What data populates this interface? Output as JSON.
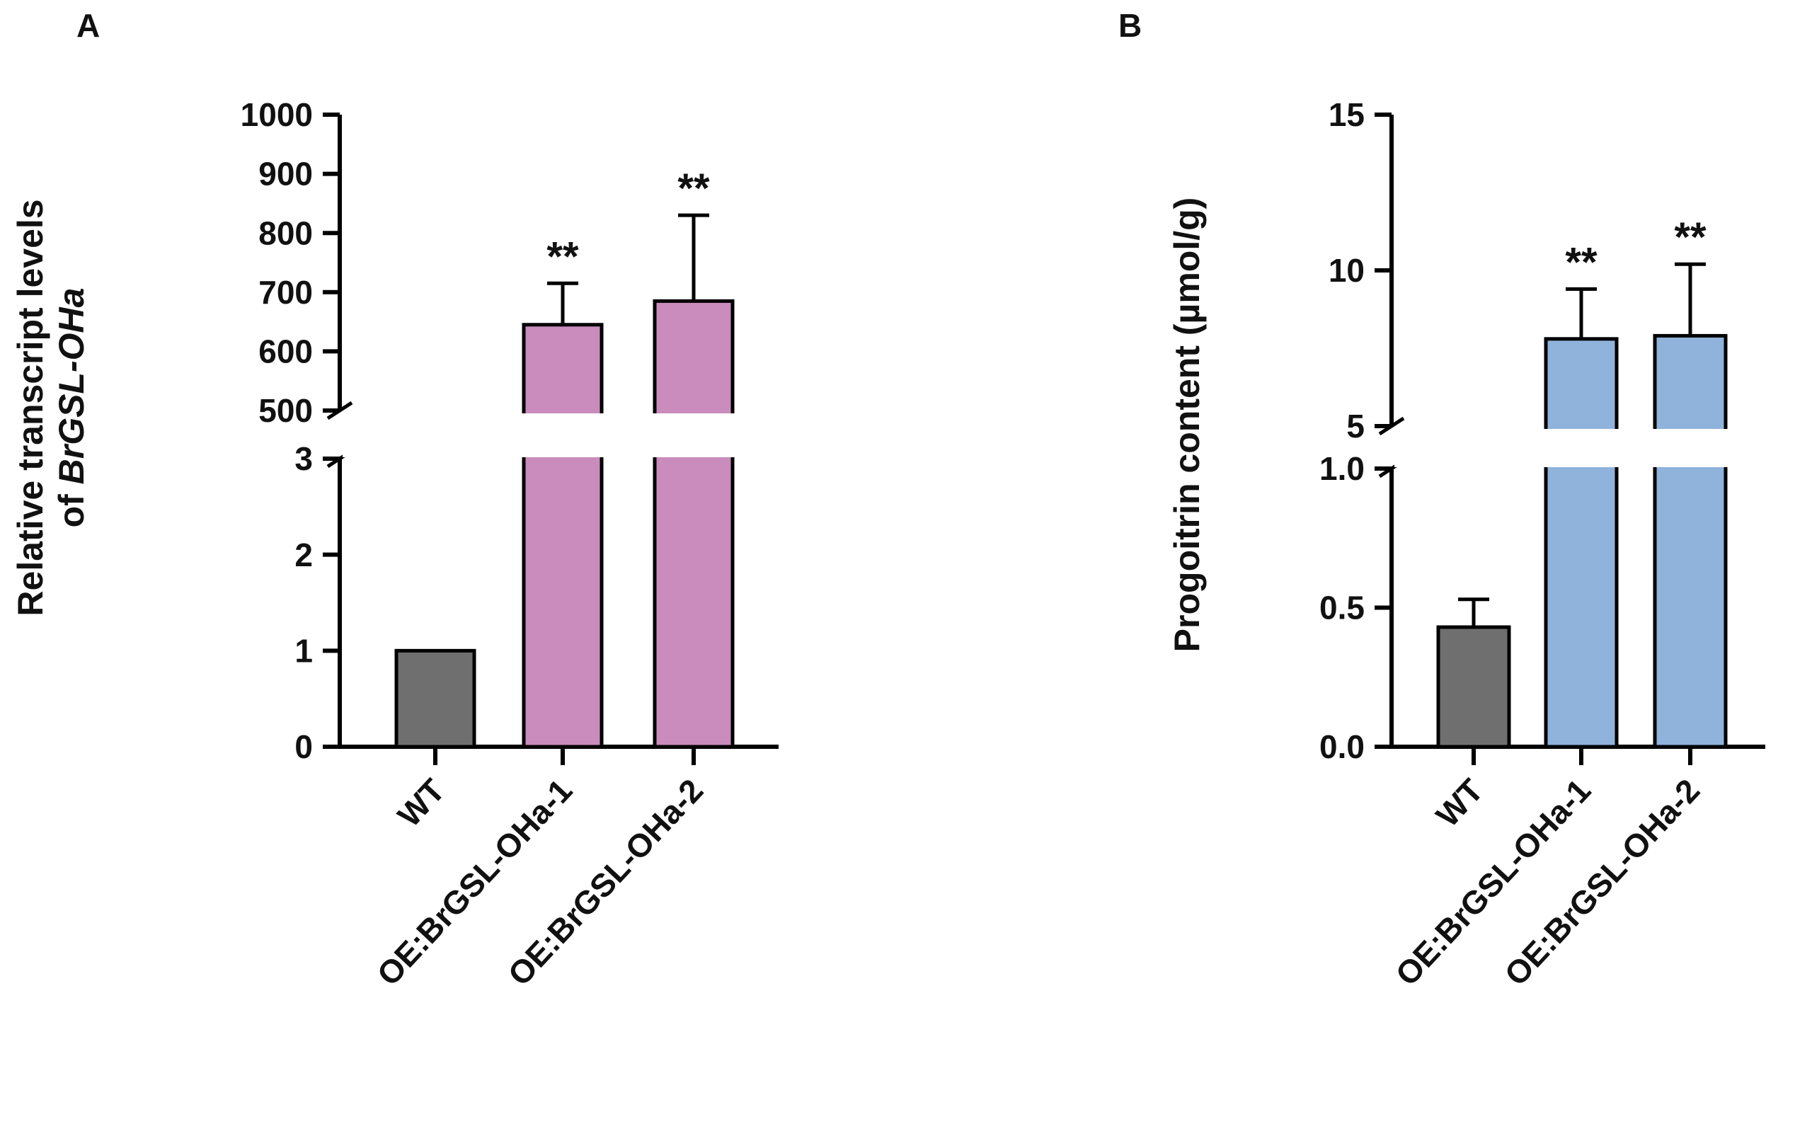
{
  "figure": {
    "background": "#ffffff",
    "text_color": "#111111"
  },
  "chart_data": [
    {
      "type": "bar",
      "panel_label": "A",
      "ylabel": "Relative transcript levels of BrGSL-OHa",
      "ylabel_lines": [
        [
          {
            "t": "Relative transcript levels",
            "italic": false
          }
        ],
        [
          {
            "t": "of ",
            "italic": false
          },
          {
            "t": "BrGSL-OHa",
            "italic": true
          }
        ]
      ],
      "categories": [
        "WT",
        "OE:BrGSL-OHa-1",
        "OE:BrGSL-OHa-2"
      ],
      "values": [
        1,
        645,
        685
      ],
      "errors_plus": [
        0,
        70,
        145
      ],
      "significance": [
        "",
        "**",
        "**"
      ],
      "bar_colors": [
        "#6f6f6f",
        "#c98cbd",
        "#c98cbd"
      ],
      "bar_edge_color": "#000000",
      "axis_break": true,
      "lower_axis": {
        "min": 0,
        "max": 3,
        "ticks": [
          {
            "v": 0,
            "label": "0"
          },
          {
            "v": 1,
            "label": "1"
          },
          {
            "v": 2,
            "label": "2"
          },
          {
            "v": 3,
            "label": "3"
          }
        ]
      },
      "upper_axis": {
        "min": 500,
        "max": 1000,
        "ticks": [
          {
            "v": 500,
            "label": "500"
          },
          {
            "v": 600,
            "label": "600"
          },
          {
            "v": 700,
            "label": "700"
          },
          {
            "v": 800,
            "label": "800"
          },
          {
            "v": 900,
            "label": "900"
          },
          {
            "v": 1000,
            "label": "1000"
          }
        ]
      },
      "grid": false,
      "legend": false
    },
    {
      "type": "bar",
      "panel_label": "B",
      "ylabel": "Progoitrin content (µmol/g)",
      "ylabel_lines": [
        [
          {
            "t": "Progoitrin content (µmol/g)",
            "italic": false
          }
        ]
      ],
      "categories": [
        "WT",
        "OE:BrGSL-OHa-1",
        "OE:BrGSL-OHa-2"
      ],
      "values": [
        0.43,
        7.8,
        7.9
      ],
      "errors_plus": [
        0.1,
        1.6,
        2.3
      ],
      "significance": [
        "",
        "**",
        "**"
      ],
      "bar_colors": [
        "#6f6f6f",
        "#8fb3db",
        "#8fb3db"
      ],
      "bar_edge_color": "#000000",
      "axis_break": true,
      "lower_axis": {
        "min": 0,
        "max": 1,
        "ticks": [
          {
            "v": 0,
            "label": "0.0"
          },
          {
            "v": 0.5,
            "label": "0.5"
          },
          {
            "v": 1,
            "label": "1.0"
          }
        ]
      },
      "upper_axis": {
        "min": 5,
        "max": 15,
        "ticks": [
          {
            "v": 5,
            "label": "5"
          },
          {
            "v": 10,
            "label": "10"
          },
          {
            "v": 15,
            "label": "15"
          }
        ]
      },
      "grid": false,
      "legend": false
    }
  ]
}
